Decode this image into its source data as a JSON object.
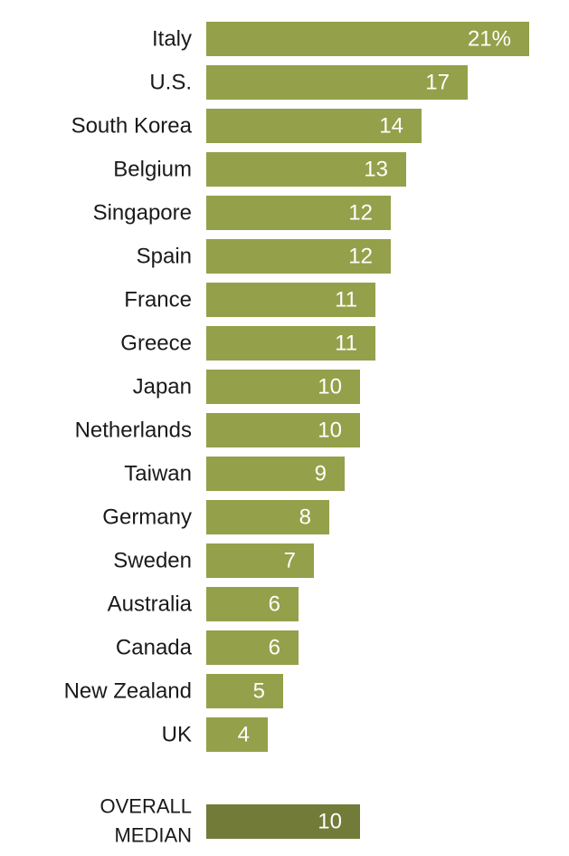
{
  "chart_data": {
    "type": "bar",
    "orientation": "horizontal",
    "categories": [
      "Italy",
      "U.S.",
      "South Korea",
      "Belgium",
      "Singapore",
      "Spain",
      "France",
      "Greece",
      "Japan",
      "Netherlands",
      "Taiwan",
      "Germany",
      "Sweden",
      "Australia",
      "Canada",
      "New Zealand",
      "UK"
    ],
    "values": [
      21,
      17,
      14,
      13,
      12,
      12,
      11,
      11,
      10,
      10,
      9,
      8,
      7,
      6,
      6,
      5,
      4
    ],
    "value_labels": [
      "21%",
      "17",
      "14",
      "13",
      "12",
      "12",
      "11",
      "11",
      "10",
      "10",
      "9",
      "8",
      "7",
      "6",
      "6",
      "5",
      "4"
    ],
    "median": {
      "label_lines": [
        "OVERALL",
        "MEDIAN"
      ],
      "value": 10,
      "value_label": "10"
    },
    "title": "",
    "xlabel": "",
    "ylabel": "",
    "xlim": [
      0,
      21
    ],
    "grid": false,
    "legend": "none",
    "colors": {
      "bar": "#95a04a",
      "median_bar": "#737b39",
      "value_text": "#ffffff",
      "label_text": "#1a1a1a"
    }
  }
}
